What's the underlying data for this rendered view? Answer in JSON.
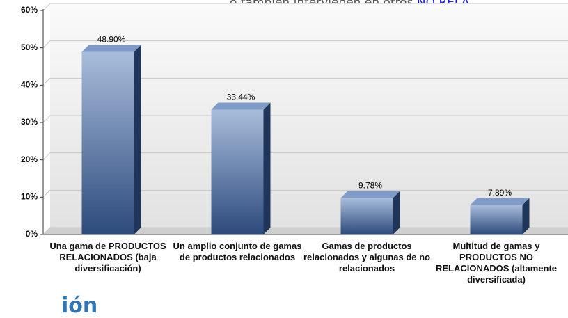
{
  "note": {
    "text": "o también intervienen en otros ",
    "highlight": "NO RELA"
  },
  "fragment": "ión",
  "chart_data": {
    "type": "bar",
    "categories": [
      "Una gama de PRODUCTOS RELACIONADOS (baja diversificación)",
      "Un amplio conjunto de gamas de productos relacionados",
      "Gamas de productos relacionados y algunas de no relacionados",
      "Multitud de gamas y PRODUCTOS NO RELACIONADOS (altamente diversificada)"
    ],
    "values": [
      48.9,
      33.44,
      9.78,
      7.89
    ],
    "value_labels": [
      "48.90%",
      "33.44%",
      "9.78%",
      "7.89%"
    ],
    "color": "#4a6fa5",
    "ylim": [
      0,
      60
    ],
    "yticks": [
      {
        "value": 0,
        "label": "0%"
      },
      {
        "value": 10,
        "label": "10%"
      },
      {
        "value": 20,
        "label": "20%"
      },
      {
        "value": 30,
        "label": "30%"
      },
      {
        "value": 40,
        "label": "40%"
      },
      {
        "value": 50,
        "label": "50%"
      },
      {
        "value": 60,
        "label": "60%"
      }
    ],
    "grid": true
  }
}
